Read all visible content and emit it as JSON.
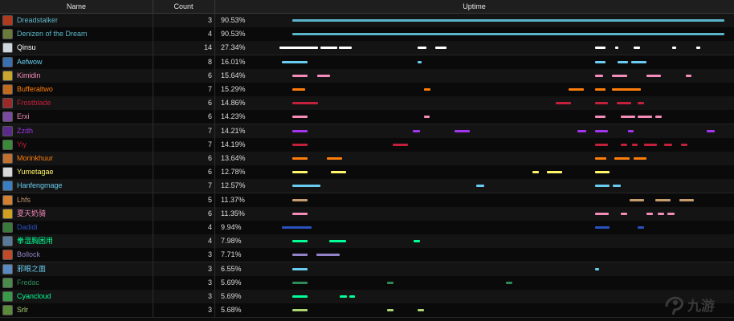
{
  "header": {
    "name": "Name",
    "count": "Count",
    "uptime": "Uptime"
  },
  "rows": [
    {
      "name": "Dreadstalker",
      "count": "3",
      "pct": "90.53%",
      "color": "#5bb5c8",
      "icon": "dreadstalker-icon",
      "iconColor": "#b03a1e",
      "segments": [
        [
          0.0,
          1.0
        ]
      ]
    },
    {
      "name": "Denizen of the Dream",
      "count": "4",
      "pct": "90.53%",
      "color": "#5bb5c8",
      "icon": "denizen-icon",
      "iconColor": "#6a7a3a",
      "segments": [
        [
          0.0,
          1.0
        ]
      ]
    },
    {
      "name": "Qinsu",
      "count": "14",
      "pct": "27.34%",
      "color": "#ffffff",
      "icon": "qinsu-icon",
      "iconColor": "#cfd6dc",
      "segments": [
        [
          -0.03,
          0.06
        ],
        [
          0.065,
          0.105
        ],
        [
          0.107,
          0.137
        ],
        [
          0.29,
          0.31
        ],
        [
          0.33,
          0.357
        ],
        [
          0.7,
          0.725
        ],
        [
          0.747,
          0.755
        ],
        [
          0.79,
          0.805
        ],
        [
          0.88,
          0.888
        ],
        [
          0.935,
          0.945
        ]
      ]
    },
    {
      "name": "Aefwow",
      "count": "8",
      "pct": "16.01%",
      "color": "#69ccf0",
      "icon": "aefwow-icon",
      "iconColor": "#3a6fb0",
      "segments": [
        [
          -0.025,
          0.035
        ],
        [
          0.29,
          0.3
        ],
        [
          0.7,
          0.725
        ],
        [
          0.752,
          0.777
        ],
        [
          0.784,
          0.82
        ]
      ]
    },
    {
      "name": "Kimidin",
      "count": "6",
      "pct": "15.64%",
      "color": "#f58cba",
      "icon": "kimidin-icon",
      "iconColor": "#c9a630",
      "segments": [
        [
          0.0,
          0.035
        ],
        [
          0.058,
          0.088
        ],
        [
          0.7,
          0.72
        ],
        [
          0.74,
          0.776
        ],
        [
          0.82,
          0.853
        ],
        [
          0.91,
          0.923
        ]
      ]
    },
    {
      "name": "Bufferaltwo",
      "count": "7",
      "pct": "15.29%",
      "color": "#ff7d0a",
      "icon": "bufferaltwo-icon",
      "iconColor": "#c06a20",
      "segments": [
        [
          0.0,
          0.03
        ],
        [
          0.305,
          0.32
        ],
        [
          0.64,
          0.675
        ],
        [
          0.7,
          0.725
        ],
        [
          0.74,
          0.807
        ]
      ]
    },
    {
      "name": "Frostblade",
      "count": "6",
      "pct": "14.86%",
      "color": "#c41f3b",
      "icon": "frostblade-icon",
      "iconColor": "#9a2a2a",
      "segments": [
        [
          0.0,
          0.06
        ],
        [
          0.61,
          0.645
        ],
        [
          0.7,
          0.73
        ],
        [
          0.75,
          0.785
        ],
        [
          0.8,
          0.815
        ]
      ]
    },
    {
      "name": "Erxi",
      "count": "6",
      "pct": "14.23%",
      "color": "#f58cba",
      "icon": "erxi-icon",
      "iconColor": "#7a4aa0",
      "segments": [
        [
          0.0,
          0.035
        ],
        [
          0.305,
          0.318
        ],
        [
          0.7,
          0.725
        ],
        [
          0.76,
          0.793
        ],
        [
          0.8,
          0.833
        ],
        [
          0.84,
          0.855
        ]
      ]
    },
    {
      "name": "Zzdh",
      "count": "7",
      "pct": "14.21%",
      "color": "#a335ee",
      "icon": "zzdh-icon",
      "iconColor": "#5a2a8a",
      "segments": [
        [
          0.0,
          0.035
        ],
        [
          0.278,
          0.295
        ],
        [
          0.375,
          0.41
        ],
        [
          0.66,
          0.68
        ],
        [
          0.7,
          0.73
        ],
        [
          0.777,
          0.79
        ],
        [
          0.96,
          0.978
        ]
      ]
    },
    {
      "name": "Yiy",
      "count": "7",
      "pct": "14.19%",
      "color": "#c41f3b",
      "icon": "yiy-icon",
      "iconColor": "#3a8a3a",
      "segments": [
        [
          0.0,
          0.035
        ],
        [
          0.233,
          0.268
        ],
        [
          0.7,
          0.73
        ],
        [
          0.76,
          0.775
        ],
        [
          0.787,
          0.8
        ],
        [
          0.815,
          0.843
        ],
        [
          0.86,
          0.88
        ],
        [
          0.9,
          0.915
        ]
      ]
    },
    {
      "name": "Morinkhuur",
      "count": "6",
      "pct": "13.64%",
      "color": "#ff7d0a",
      "icon": "morinkhuur-icon",
      "iconColor": "#c07030",
      "segments": [
        [
          0.0,
          0.035
        ],
        [
          0.08,
          0.115
        ],
        [
          0.7,
          0.727
        ],
        [
          0.745,
          0.78
        ],
        [
          0.79,
          0.82
        ]
      ]
    },
    {
      "name": "Yumetagae",
      "count": "6",
      "pct": "12.78%",
      "color": "#fff569",
      "icon": "yumetagae-icon",
      "iconColor": "#d8d8d8",
      "segments": [
        [
          0.0,
          0.035
        ],
        [
          0.09,
          0.125
        ],
        [
          0.555,
          0.57
        ],
        [
          0.59,
          0.625
        ],
        [
          0.7,
          0.735
        ]
      ]
    },
    {
      "name": "Hanfengmage",
      "count": "7",
      "pct": "12.57%",
      "color": "#69ccf0",
      "icon": "hanfengmage-icon",
      "iconColor": "#3a80c0",
      "segments": [
        [
          0.0,
          0.065
        ],
        [
          0.425,
          0.445
        ],
        [
          0.7,
          0.735
        ],
        [
          0.742,
          0.76
        ]
      ]
    },
    {
      "name": "Lhfs",
      "count": "5",
      "pct": "11.37%",
      "color": "#c79c6e",
      "icon": "lhfs-icon",
      "iconColor": "#d08030",
      "segments": [
        [
          0.0,
          0.035
        ],
        [
          0.78,
          0.815
        ],
        [
          0.84,
          0.875
        ],
        [
          0.895,
          0.93
        ]
      ]
    },
    {
      "name": "夏天奶骑",
      "count": "6",
      "pct": "11.35%",
      "color": "#f58cba",
      "icon": "xiatian-icon",
      "iconColor": "#d0a020",
      "segments": [
        [
          0.0,
          0.035
        ],
        [
          0.7,
          0.733
        ],
        [
          0.76,
          0.776
        ],
        [
          0.82,
          0.835
        ],
        [
          0.845,
          0.86
        ],
        [
          0.868,
          0.885
        ]
      ]
    },
    {
      "name": "Dadidi",
      "count": "4",
      "pct": "9.94%",
      "color": "#2a52be",
      "icon": "dadidi-icon",
      "iconColor": "#3a7a3a",
      "segments": [
        [
          -0.025,
          0.045
        ],
        [
          0.7,
          0.735
        ],
        [
          0.8,
          0.815
        ]
      ]
    },
    {
      "name": "拳湿胸困用",
      "count": "4",
      "pct": "7.98%",
      "color": "#00ff96",
      "icon": "quanshi-icon",
      "iconColor": "#5a7a9a",
      "segments": [
        [
          0.0,
          0.035
        ],
        [
          0.085,
          0.125
        ],
        [
          0.28,
          0.295
        ]
      ]
    },
    {
      "name": "Bollock",
      "count": "3",
      "pct": "7.71%",
      "color": "#9482c9",
      "icon": "bollock-icon",
      "iconColor": "#c04a2a",
      "segments": [
        [
          0.0,
          0.035
        ],
        [
          0.055,
          0.11
        ]
      ]
    },
    {
      "name": "邪眼之面",
      "count": "3",
      "pct": "6.55%",
      "color": "#69ccf0",
      "icon": "xieyan-icon",
      "iconColor": "#5a8ac0",
      "segments": [
        [
          0.0,
          0.035
        ],
        [
          0.7,
          0.71
        ]
      ]
    },
    {
      "name": "Fredac",
      "count": "3",
      "pct": "5.69%",
      "color": "#2e8b57",
      "icon": "fredac-icon",
      "iconColor": "#4a8a4a",
      "segments": [
        [
          0.0,
          0.035
        ],
        [
          0.22,
          0.235
        ],
        [
          0.495,
          0.51
        ]
      ]
    },
    {
      "name": "Cyancloud",
      "count": "3",
      "pct": "5.69%",
      "color": "#00ff96",
      "icon": "cyancloud-icon",
      "iconColor": "#3a9a4a",
      "segments": [
        [
          0.0,
          0.035
        ],
        [
          0.11,
          0.127
        ],
        [
          0.132,
          0.145
        ]
      ]
    },
    {
      "name": "Srlr",
      "count": "3",
      "pct": "5.68%",
      "color": "#abd473",
      "icon": "srlr-icon",
      "iconColor": "#5a8a3a",
      "segments": [
        [
          0.0,
          0.035
        ],
        [
          0.22,
          0.235
        ],
        [
          0.29,
          0.305
        ]
      ]
    }
  ],
  "watermark": {
    "label": "九游",
    "color": "#2a2a2a",
    "icon": "jiuyou-logo-icon"
  }
}
